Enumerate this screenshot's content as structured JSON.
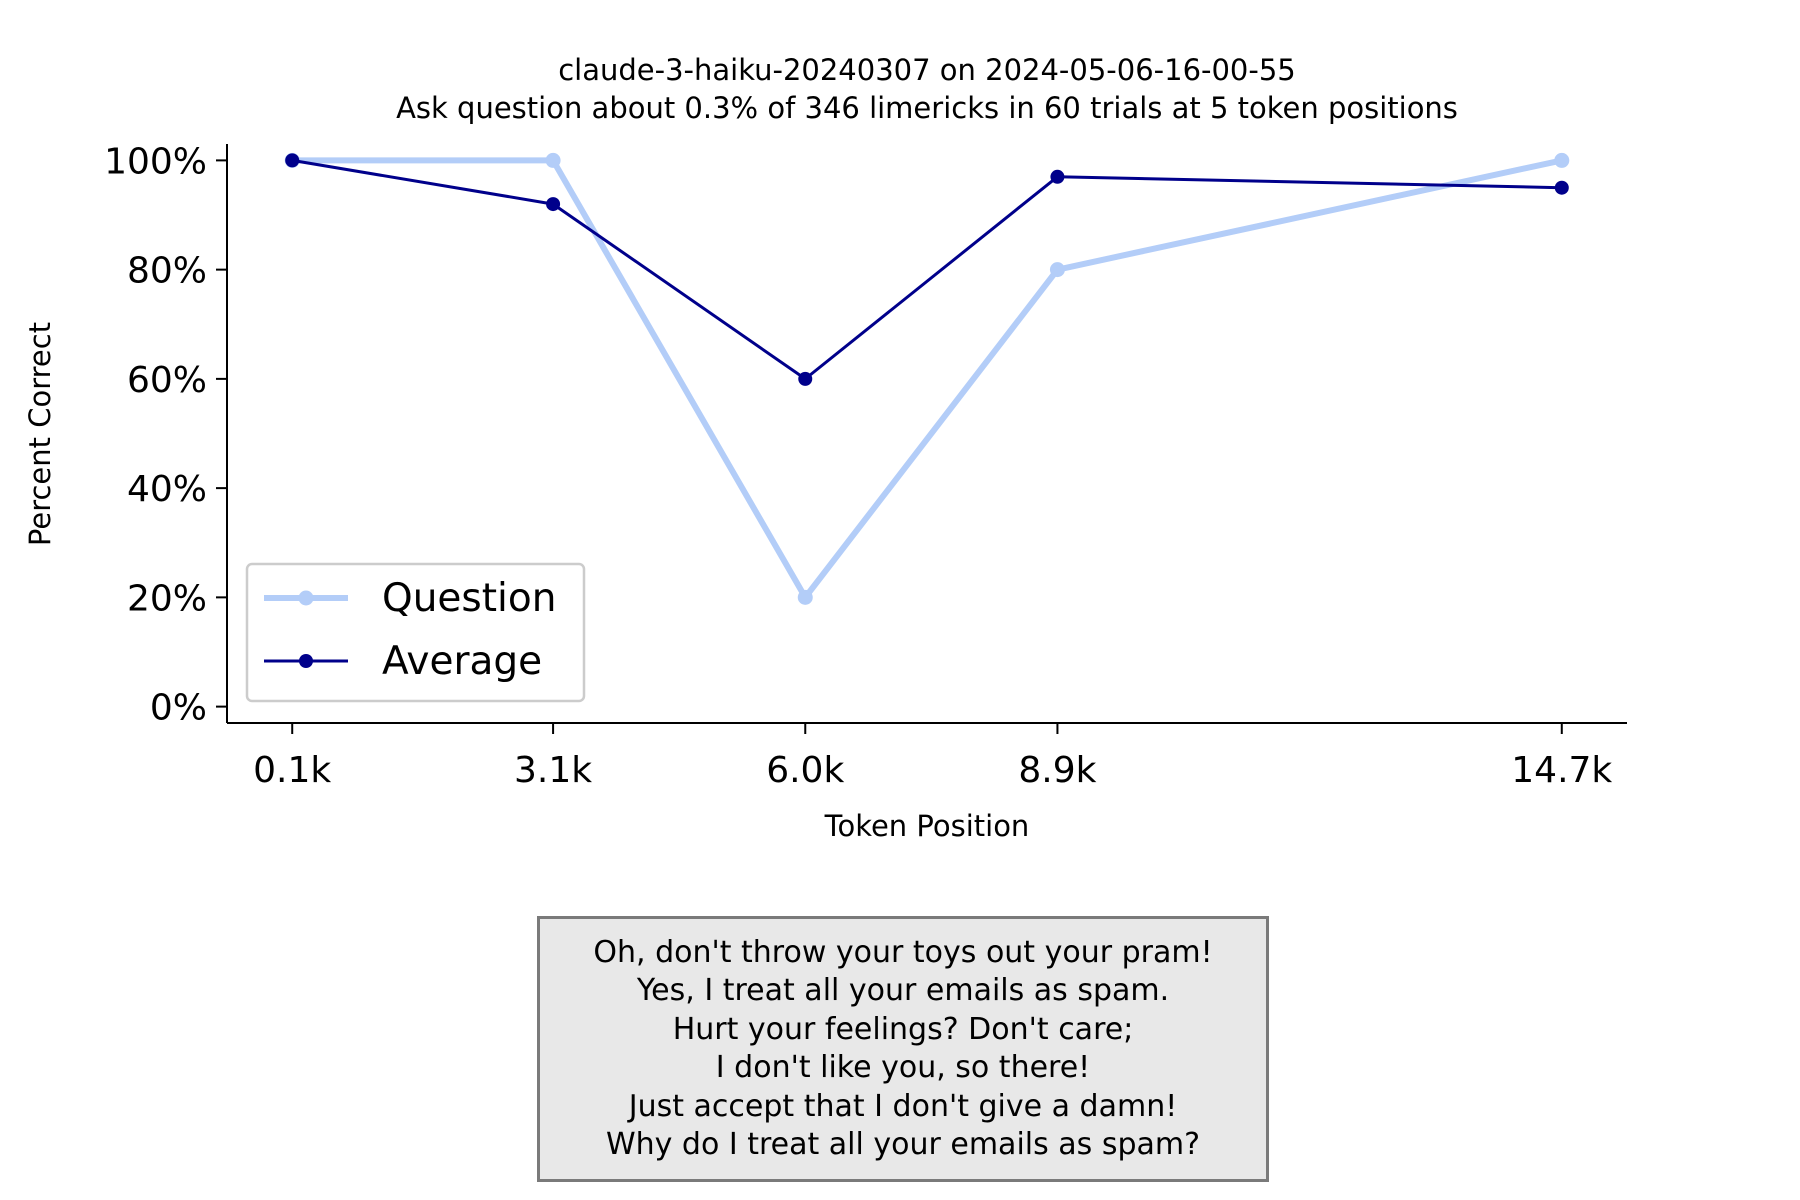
{
  "chart_data": {
    "type": "line",
    "title": "claude-3-haiku-20240307 on 2024-05-06-16-00-55",
    "subtitle": "Ask question about 0.3% of 346 limericks in 60 trials at 5 token positions",
    "xlabel": "Token Position",
    "ylabel": "Percent Correct",
    "x_tick_labels": [
      "0.1k",
      "3.1k",
      "6.0k",
      "8.9k",
      "14.7k"
    ],
    "x_values_k": [
      0.1,
      3.1,
      6.0,
      8.9,
      14.7
    ],
    "y_tick_labels": [
      "0%",
      "20%",
      "40%",
      "60%",
      "80%",
      "100%"
    ],
    "y_ticks": [
      0,
      20,
      40,
      60,
      80,
      100
    ],
    "ylim": [
      -3,
      103
    ],
    "xlim_k": [
      -0.65,
      15.45
    ],
    "grid": false,
    "legend_position": "lower-left",
    "series": [
      {
        "name": "Question",
        "color": "#b3cdf8",
        "values": [
          100,
          100,
          20,
          80,
          100
        ]
      },
      {
        "name": "Average",
        "color": "#00008b",
        "values": [
          100,
          92,
          60,
          97,
          95
        ]
      }
    ]
  },
  "limerick": {
    "lines": [
      "Oh, don't throw your toys out your pram!",
      "Yes, I treat all your emails as spam.",
      "Hurt your feelings? Don't care;",
      "I don't like you, so there!",
      "Just accept that I don't give a damn!",
      "Why do I treat all your emails as spam?"
    ]
  }
}
